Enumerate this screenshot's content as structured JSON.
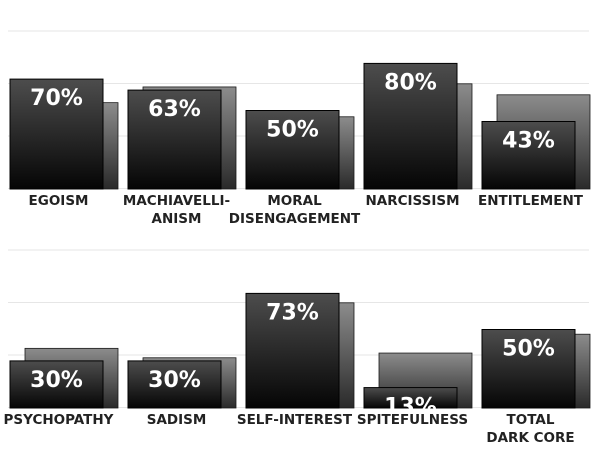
{
  "chart_data": [
    {
      "type": "bar",
      "ylim": [
        0,
        100
      ],
      "grid": true,
      "categories": [
        {
          "label": [
            "EGOISM"
          ],
          "value": 70,
          "value_label": "70%",
          "comparison": 55
        },
        {
          "label": [
            "MACHIAVELLI-",
            "ANISM"
          ],
          "value": 63,
          "value_label": "63%",
          "comparison": 65
        },
        {
          "label": [
            "MORAL",
            "DISENGAGEMENT"
          ],
          "value": 50,
          "value_label": "50%",
          "comparison": 46
        },
        {
          "label": [
            "NARCISSISM"
          ],
          "value": 80,
          "value_label": "80%",
          "comparison": 67
        },
        {
          "label": [
            "ENTITLEMENT"
          ],
          "value": 43,
          "value_label": "43%",
          "comparison": 60
        }
      ]
    },
    {
      "type": "bar",
      "ylim": [
        0,
        100
      ],
      "grid": true,
      "categories": [
        {
          "label": [
            "PSYCHOPATHY"
          ],
          "value": 30,
          "value_label": "30%",
          "comparison": 38
        },
        {
          "label": [
            "SADISM"
          ],
          "value": 30,
          "value_label": "30%",
          "comparison": 32
        },
        {
          "label": [
            "SELF-INTEREST"
          ],
          "value": 73,
          "value_label": "73%",
          "comparison": 67
        },
        {
          "label": [
            "SPITEFULNESS"
          ],
          "value": 13,
          "value_label": "13%",
          "comparison": 35
        },
        {
          "label": [
            "TOTAL",
            "DARK CORE"
          ],
          "value": 50,
          "value_label": "50%",
          "comparison": 47
        }
      ]
    }
  ],
  "colors": {
    "primary_top": "#4d4d4d",
    "primary_bottom": "#050505",
    "comparison_top": "#8c8c8c",
    "comparison_bottom": "#2a2a2a",
    "value_text": "#ffffff",
    "category_text": "#222222",
    "grid": "#e6e6e6"
  }
}
